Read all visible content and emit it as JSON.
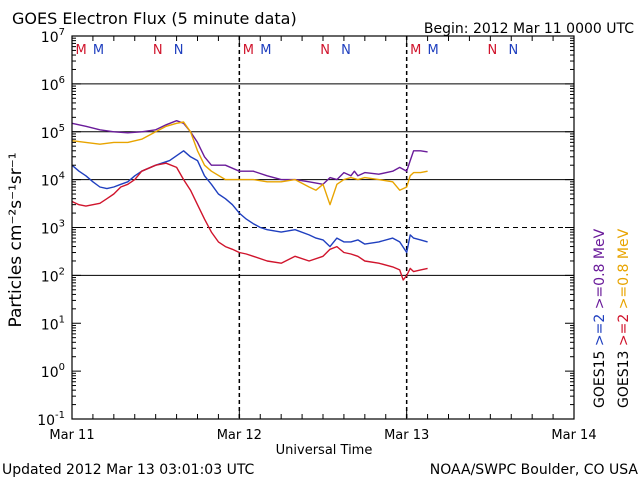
{
  "chart_data": {
    "type": "line",
    "title": "GOES Electron Flux (5 minute data)",
    "begin_label": "Begin: 2012 Mar 11 0000 UTC",
    "xlabel": "Universal Time",
    "ylabel": "Particles cm⁻²s⁻¹sr⁻¹",
    "y_scale": "log",
    "ylim": [
      0.1,
      10000000
    ],
    "xlim": [
      0,
      72
    ],
    "x_unit": "hours since 2012 Mar 11 0000 UTC",
    "y_tick_values": [
      0.1,
      1,
      10,
      100,
      1000,
      10000,
      100000,
      1000000,
      10000000
    ],
    "y_tick_labels": [
      {
        "base": "10",
        "exp": "-1"
      },
      {
        "base": "10",
        "exp": "0"
      },
      {
        "base": "10",
        "exp": "1"
      },
      {
        "base": "10",
        "exp": "2"
      },
      {
        "base": "10",
        "exp": "3"
      },
      {
        "base": "10",
        "exp": "4"
      },
      {
        "base": "10",
        "exp": "5"
      },
      {
        "base": "10",
        "exp": "6"
      },
      {
        "base": "10",
        "exp": "7"
      }
    ],
    "x_ticks": [
      {
        "hour": 0,
        "label": "Mar 11"
      },
      {
        "hour": 24,
        "label": "Mar 12"
      },
      {
        "hour": 48,
        "label": "Mar 13"
      },
      {
        "hour": 72,
        "label": "Mar 14"
      }
    ],
    "solid_gridlines": [
      100,
      10000,
      100000,
      1000000
    ],
    "dashed_gridlines": [
      1000
    ],
    "day_boundaries": [
      24,
      48
    ],
    "markers": [
      {
        "hour": 1.3,
        "label": "M",
        "color": "#d0142c"
      },
      {
        "hour": 3.8,
        "label": "M",
        "color": "#1f3fbf"
      },
      {
        "hour": 12.3,
        "label": "N",
        "color": "#d0142c"
      },
      {
        "hour": 15.3,
        "label": "N",
        "color": "#1f3fbf"
      },
      {
        "hour": 25.3,
        "label": "M",
        "color": "#d0142c"
      },
      {
        "hour": 27.8,
        "label": "M",
        "color": "#1f3fbf"
      },
      {
        "hour": 36.3,
        "label": "N",
        "color": "#d0142c"
      },
      {
        "hour": 39.3,
        "label": "N",
        "color": "#1f3fbf"
      },
      {
        "hour": 49.3,
        "label": "M",
        "color": "#d0142c"
      },
      {
        "hour": 51.8,
        "label": "M",
        "color": "#1f3fbf"
      },
      {
        "hour": 60.3,
        "label": "N",
        "color": "#d0142c"
      },
      {
        "hour": 63.3,
        "label": "N",
        "color": "#1f3fbf"
      }
    ],
    "legend_placement": "right, vertical",
    "legend": [
      {
        "text": "GOES15",
        "color": "#000000"
      },
      {
        "text": ">=2",
        "color": "#1f3fbf"
      },
      {
        "text": ">=0.8 MeV",
        "color": "#6a1b9a"
      },
      {
        "text": "GOES13",
        "color": "#000000"
      },
      {
        "text": ">=2",
        "color": "#d0142c"
      },
      {
        "text": ">=0.8 MeV",
        "color": "#e8a400"
      }
    ],
    "series": [
      {
        "name": "GOES15 >=0.8 MeV",
        "color": "#6a1b9a",
        "x": [
          0,
          2,
          4,
          6,
          8,
          10,
          12,
          13.5,
          15,
          16,
          17,
          18,
          19,
          20,
          22,
          24,
          26,
          28,
          30,
          32,
          34,
          36,
          37,
          38,
          39,
          40,
          40.5,
          41,
          42,
          44,
          46,
          47,
          48,
          48.5,
          49,
          50,
          51
        ],
        "y": [
          150000,
          130000,
          110000,
          100000,
          95000,
          100000,
          110000,
          140000,
          170000,
          150000,
          100000,
          60000,
          30000,
          20000,
          20000,
          15000,
          15000,
          12000,
          10000,
          10000,
          9000,
          8000,
          11000,
          10000,
          14000,
          12000,
          15000,
          12000,
          14000,
          13000,
          15000,
          18000,
          15000,
          25000,
          40000,
          40000,
          38000
        ]
      },
      {
        "name": "GOES13 >=0.8 MeV",
        "color": "#e8a400",
        "x": [
          0,
          2,
          4,
          6,
          8,
          10,
          12,
          13.5,
          15,
          16,
          17,
          18,
          19,
          20,
          22,
          24,
          26,
          28,
          30,
          32,
          34,
          35,
          36,
          37,
          38,
          39,
          40,
          41,
          42,
          44,
          46,
          47,
          48,
          48.5,
          49,
          50,
          51
        ],
        "y": [
          65000,
          60000,
          55000,
          60000,
          60000,
          70000,
          100000,
          130000,
          150000,
          160000,
          100000,
          40000,
          20000,
          15000,
          10000,
          10000,
          10000,
          9000,
          9000,
          10000,
          7000,
          6000,
          8000,
          3000,
          8000,
          10000,
          11000,
          10000,
          11000,
          10000,
          9000,
          6000,
          7000,
          12000,
          14000,
          14000,
          15000
        ]
      },
      {
        "name": "GOES15 >=2 MeV",
        "color": "#1f3fbf",
        "x": [
          0,
          1,
          2,
          3,
          4,
          5,
          6,
          7,
          8,
          9,
          10,
          12,
          14,
          16,
          17,
          18,
          19,
          20,
          21,
          22,
          23,
          24,
          25,
          26,
          27,
          28,
          30,
          32,
          34,
          35,
          36,
          37,
          38,
          39,
          40,
          41,
          42,
          44,
          46,
          47,
          48,
          48.5,
          49,
          50,
          51
        ],
        "y": [
          20000,
          15000,
          12000,
          9000,
          7000,
          6500,
          7000,
          8000,
          9000,
          12000,
          15000,
          20000,
          25000,
          40000,
          30000,
          25000,
          12000,
          8000,
          5000,
          4000,
          3000,
          2000,
          1500,
          1200,
          1000,
          900,
          800,
          900,
          700,
          600,
          550,
          400,
          600,
          500,
          500,
          550,
          450,
          500,
          600,
          500,
          300,
          700,
          600,
          550,
          500
        ]
      },
      {
        "name": "GOES13 >=2 MeV",
        "color": "#d0142c",
        "x": [
          0,
          1,
          2,
          3,
          4,
          5,
          6,
          7,
          8,
          9,
          10,
          12,
          13.5,
          15,
          16,
          17,
          18,
          19,
          20,
          21,
          22,
          23,
          24,
          25,
          26,
          28,
          30,
          32,
          34,
          36,
          37,
          38,
          39,
          40,
          41,
          42,
          44,
          46,
          47,
          47.5,
          48,
          48.5,
          49,
          50,
          51
        ],
        "y": [
          3500,
          3000,
          2800,
          3000,
          3200,
          4000,
          5000,
          7000,
          8000,
          10000,
          15000,
          20000,
          22000,
          18000,
          10000,
          6000,
          3000,
          1500,
          800,
          500,
          400,
          350,
          300,
          280,
          250,
          200,
          180,
          250,
          200,
          250,
          350,
          400,
          300,
          280,
          250,
          200,
          180,
          150,
          130,
          80,
          100,
          140,
          120,
          130,
          140
        ]
      }
    ]
  },
  "footer": {
    "updated": "Updated 2012 Mar 13 03:01:03 UTC",
    "source": "NOAA/SWPC Boulder, CO USA"
  }
}
